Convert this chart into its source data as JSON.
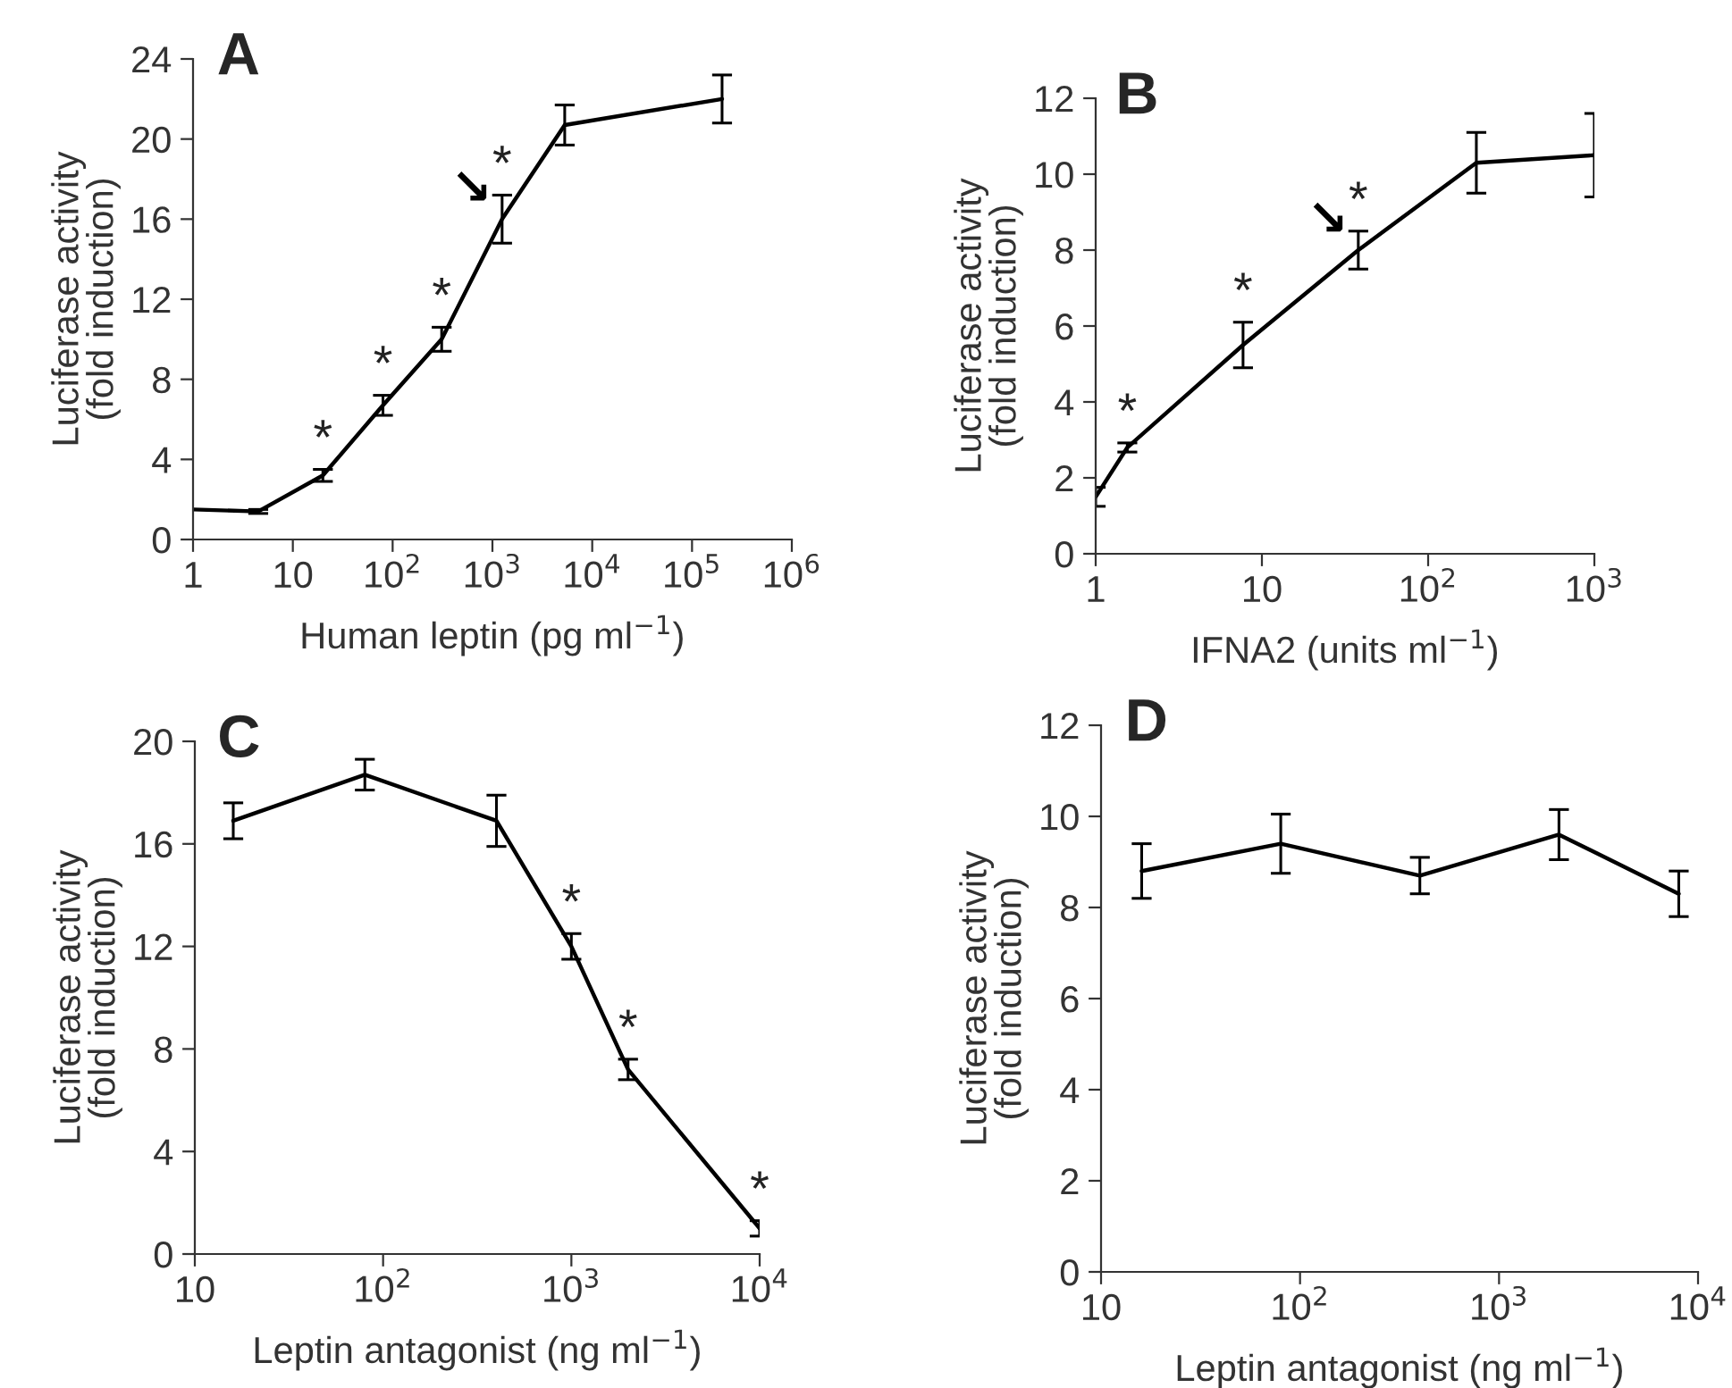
{
  "chart_data": [
    {
      "type": "line",
      "title": "A",
      "xlabel": "Human leptin (pg ml$^{−1}$)",
      "ylabel": "Luciferase activity\n(fold induction)",
      "log": "x",
      "grid": false,
      "marker": "none",
      "line_style": "solid",
      "x": [
        1,
        4.5,
        20,
        80,
        310,
        1250,
        5300,
        200000
      ],
      "series": [
        {
          "color": "#000000",
          "values": [
            1.5,
            1.4,
            3.2,
            6.7,
            10.0,
            16.0,
            20.7,
            22.0
          ],
          "errors": [
            null,
            0.1,
            0.3,
            0.5,
            0.6,
            1.2,
            1.0,
            1.2
          ]
        }
      ],
      "xlim": [
        1,
        1000000
      ],
      "xticks": [
        1,
        10,
        {
          "value": 100,
          "label": "10$^{2}$"
        },
        {
          "value": 1000,
          "label": "10$^{3}$"
        },
        {
          "value": 10000,
          "label": "10$^{4}$"
        },
        {
          "value": 100000,
          "label": "10$^{5}$"
        },
        {
          "value": 1000000,
          "label": "10$^{6}$"
        }
      ],
      "ylim": [
        0,
        24
      ],
      "yticks": [
        0,
        4,
        8,
        12,
        16,
        20,
        24
      ],
      "annotations": [
        {
          "text": "*",
          "x": 20,
          "y": 3.2
        },
        {
          "text": "*",
          "x": 80,
          "y": 6.7
        },
        {
          "text": "*",
          "x": 310,
          "y": 10.0
        },
        {
          "text": "*",
          "x": 1250,
          "y": 16.0
        },
        {
          "text": "↘",
          "x": 1250,
          "y": 16.0
        }
      ]
    },
    {
      "type": "line",
      "title": "B",
      "xlabel": "IFNA2 (units ml$^{−1}$)",
      "ylabel": "Luciferase activity\n(fold induction)",
      "log": "x",
      "grid": false,
      "marker": "none",
      "line_style": "solid",
      "x": [
        1,
        1.55,
        7.7,
        38,
        195,
        1000
      ],
      "series": [
        {
          "color": "#000000",
          "values": [
            1.5,
            2.8,
            5.5,
            8.0,
            10.3,
            10.5
          ],
          "errors": [
            0.25,
            0.12,
            0.6,
            0.5,
            0.8,
            1.1
          ]
        }
      ],
      "xlim": [
        1,
        1000
      ],
      "xticks": [
        1,
        10,
        {
          "value": 100,
          "label": "10$^{2}$"
        },
        {
          "value": 1000,
          "label": "10$^{3}$"
        }
      ],
      "ylim": [
        0,
        12
      ],
      "yticks": [
        0,
        2,
        4,
        6,
        8,
        10,
        12
      ],
      "annotations": [
        {
          "text": "*",
          "x": 1.55,
          "y": 2.8
        },
        {
          "text": "*",
          "x": 7.7,
          "y": 5.5
        },
        {
          "text": "*",
          "x": 38,
          "y": 8.0
        },
        {
          "text": "↘",
          "x": 38,
          "y": 8.0
        }
      ]
    },
    {
      "type": "line",
      "title": "C",
      "xlabel": "Leptin antagonist (ng ml$^{−1}$)",
      "ylabel": "Luciferase activity\n(fold induction)",
      "log": "x",
      "grid": false,
      "marker": "none",
      "line_style": "solid",
      "x": [
        16,
        80,
        400,
        1000,
        2000,
        10000
      ],
      "series": [
        {
          "color": "#000000",
          "values": [
            16.9,
            18.7,
            16.9,
            12.0,
            7.2,
            1.0
          ],
          "errors": [
            0.7,
            0.6,
            1.0,
            0.5,
            0.4,
            0.3
          ]
        }
      ],
      "xlim": [
        10,
        10000
      ],
      "xticks": [
        10,
        {
          "value": 100,
          "label": "10$^{2}$"
        },
        {
          "value": 1000,
          "label": "10$^{3}$"
        },
        {
          "value": 10000,
          "label": "10$^{4}$"
        }
      ],
      "ylim": [
        0,
        20
      ],
      "yticks": [
        0,
        4,
        8,
        12,
        16,
        20
      ],
      "annotations": [
        {
          "text": "*",
          "x": 1000,
          "y": 12.0
        },
        {
          "text": "*",
          "x": 2000,
          "y": 7.2
        },
        {
          "text": "*",
          "x": 10000,
          "y": 1.0
        }
      ]
    },
    {
      "type": "line",
      "title": "D",
      "xlabel": "Leptin antagonist (ng ml$^{−1}$)",
      "ylabel": "Luciferase activity\n(fold induction)",
      "log": "x",
      "grid": false,
      "marker": "none",
      "line_style": "solid",
      "x": [
        16,
        80,
        400,
        2000,
        8000
      ],
      "series": [
        {
          "color": "#000000",
          "values": [
            8.8,
            9.4,
            8.7,
            9.6,
            8.3
          ],
          "errors": [
            0.6,
            0.65,
            0.4,
            0.55,
            0.5
          ]
        }
      ],
      "xlim": [
        10,
        10000
      ],
      "xticks": [
        10,
        {
          "value": 100,
          "label": "10$^{2}$"
        },
        {
          "value": 1000,
          "label": "10$^{3}$"
        },
        {
          "value": 10000,
          "label": "10$^{4}$"
        }
      ],
      "ylim": [
        0,
        12
      ],
      "yticks": [
        0,
        2,
        4,
        6,
        8,
        10,
        12
      ]
    }
  ]
}
